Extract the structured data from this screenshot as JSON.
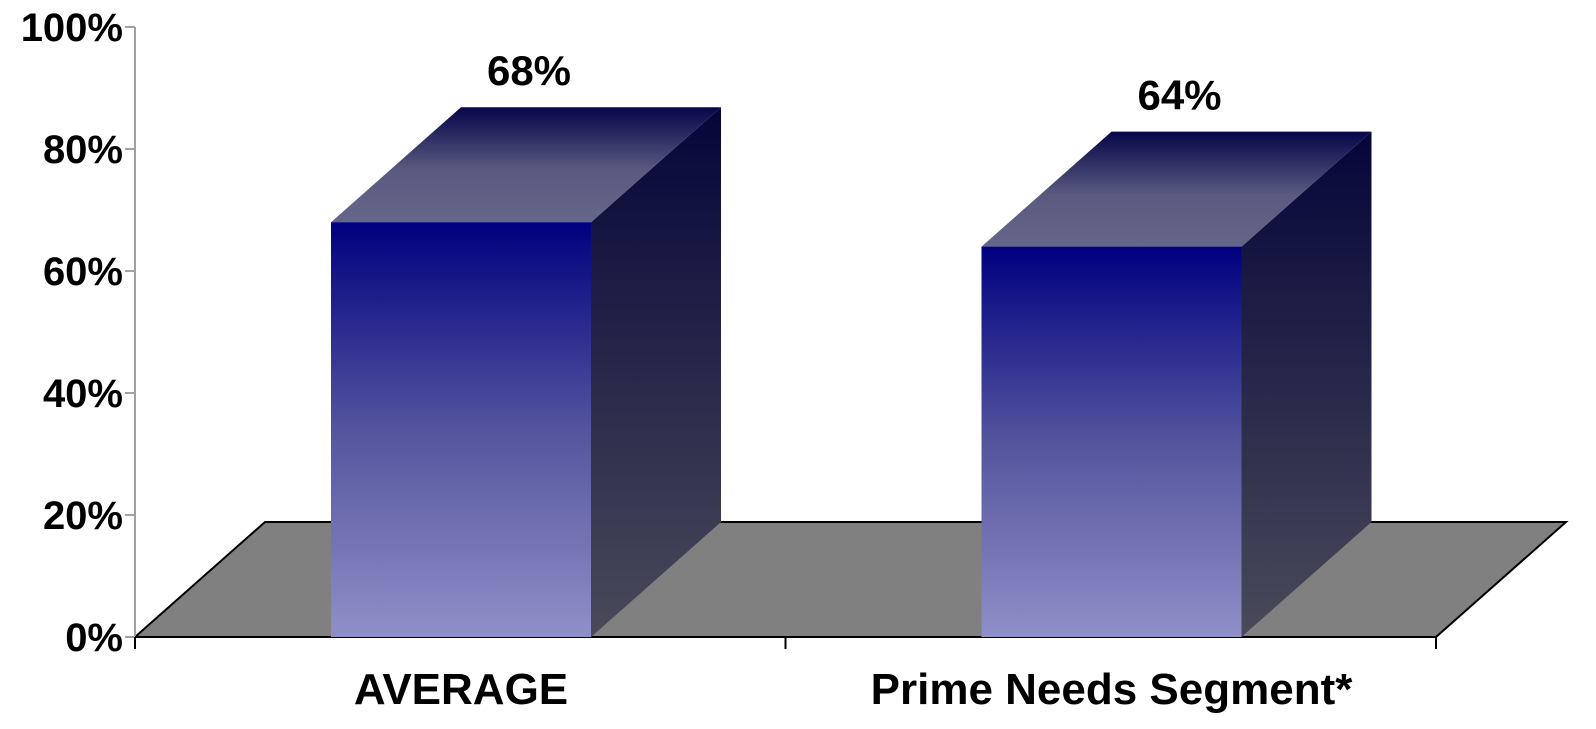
{
  "chart_data": {
    "type": "bar",
    "style": "3d-column",
    "categories": [
      "AVERAGE",
      "Prime Needs Segment*"
    ],
    "values": [
      68,
      64
    ],
    "data_labels": [
      "68%",
      "64%"
    ],
    "yticks": [
      "0%",
      "20%",
      "40%",
      "60%",
      "80%",
      "100%"
    ],
    "ylim": [
      0,
      100
    ],
    "grid": false,
    "legend": "none",
    "colors": {
      "bar_front_top": "#000080",
      "bar_front_bottom": "#8f8fc8",
      "bar_side_top": "#05053a",
      "bar_side_bottom": "#4a4a5a",
      "bar_top_face": "#66668a",
      "floor": "#808080",
      "axis": "#000000"
    }
  }
}
